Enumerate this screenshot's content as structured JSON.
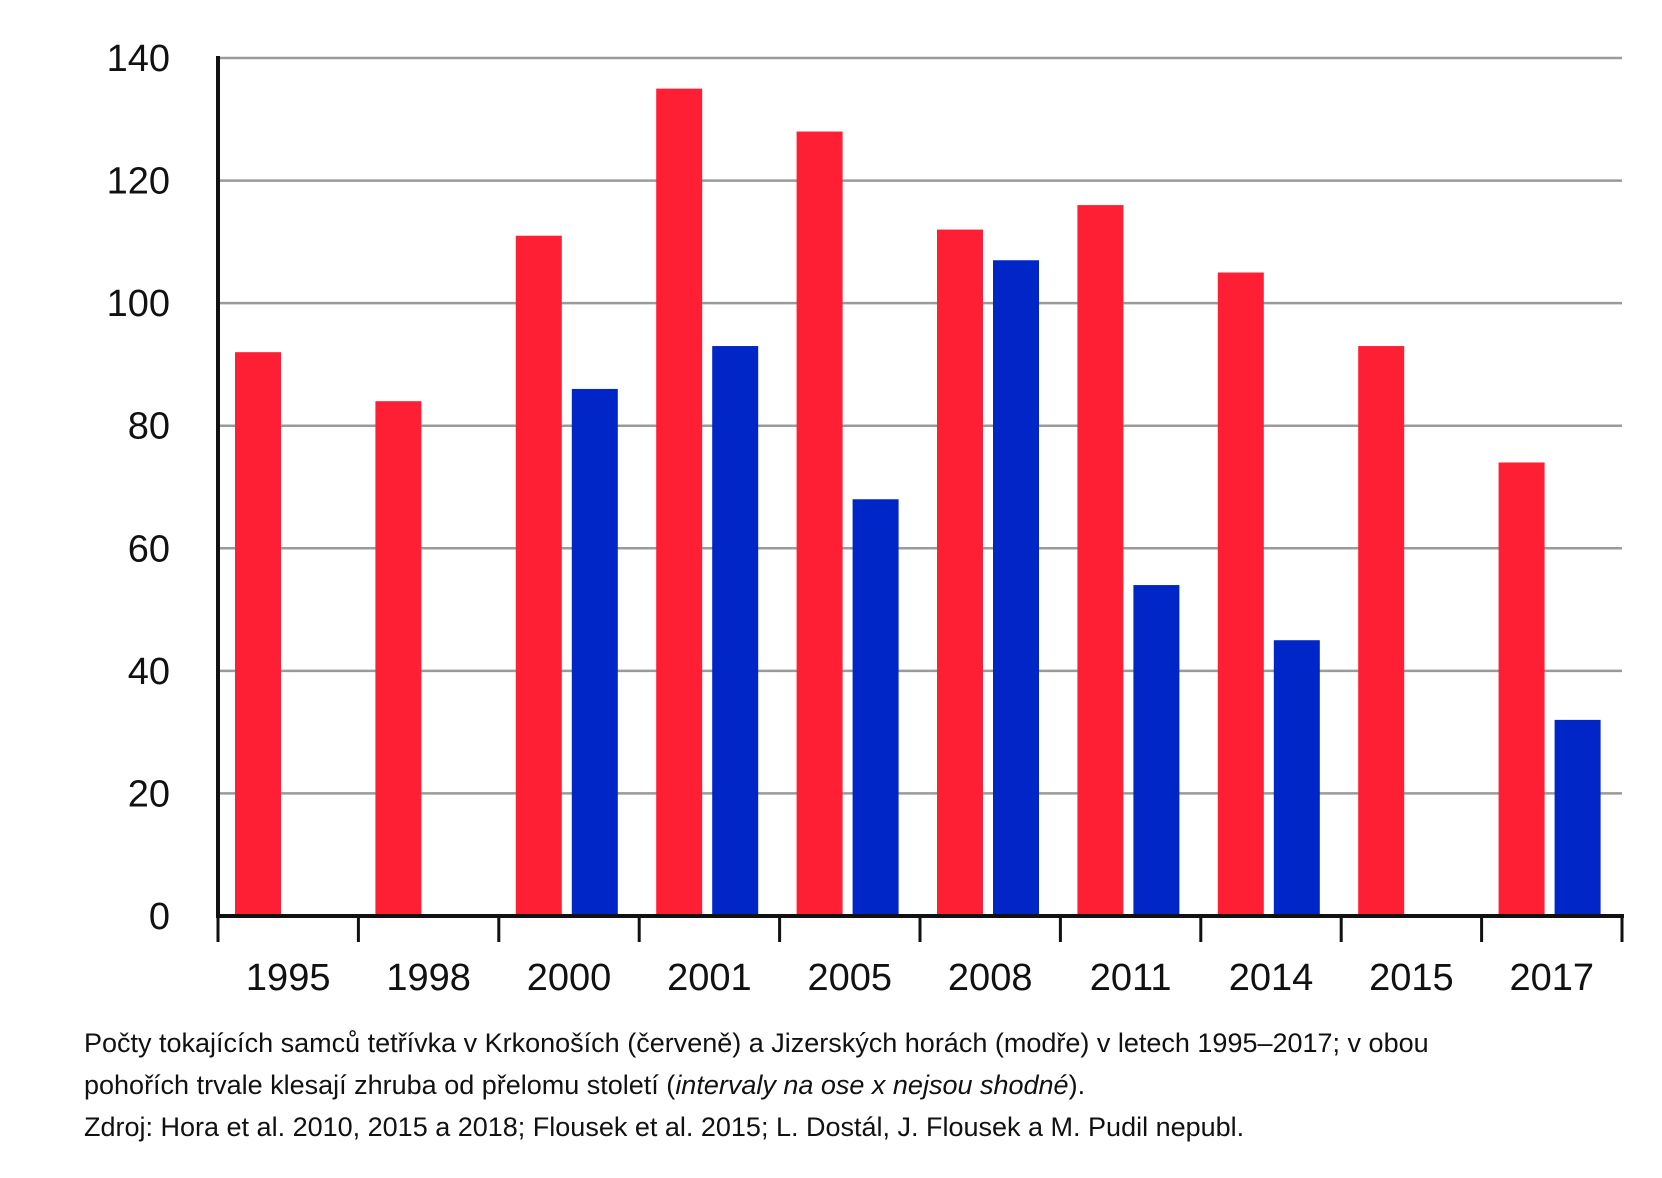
{
  "chart_data": {
    "type": "bar",
    "categories": [
      "1995",
      "1998",
      "2000",
      "2001",
      "2005",
      "2008",
      "2011",
      "2014",
      "2015",
      "2017"
    ],
    "series": [
      {
        "color": "#ff1f35",
        "values": [
          92,
          84,
          111,
          135,
          128,
          112,
          116,
          105,
          93,
          74
        ]
      },
      {
        "color": "#0026c8",
        "values": [
          null,
          null,
          86,
          93,
          68,
          107,
          54,
          45,
          null,
          32
        ]
      }
    ],
    "ylim": [
      0,
      140
    ],
    "yticks": [
      0,
      20,
      40,
      60,
      80,
      100,
      120,
      140
    ],
    "grid": true,
    "title": "",
    "xlabel": "",
    "ylabel": ""
  },
  "caption": {
    "line1": "Počty tokajících samců tetřívka v Krkonoších (červeně) a Jizerských horách (modře) v letech 1995–2017; v obou",
    "line2_start": "pohořích trvale klesají zhruba od přelomu století (",
    "line2_italic": "intervaly na ose x nejsou shodné",
    "line2_end": ").",
    "line3": "Zdroj: Hora et al. 2010, 2015 a 2018; Flousek et al. 2015; L. Dostál, J. Flousek a M. Pudil nepubl."
  }
}
